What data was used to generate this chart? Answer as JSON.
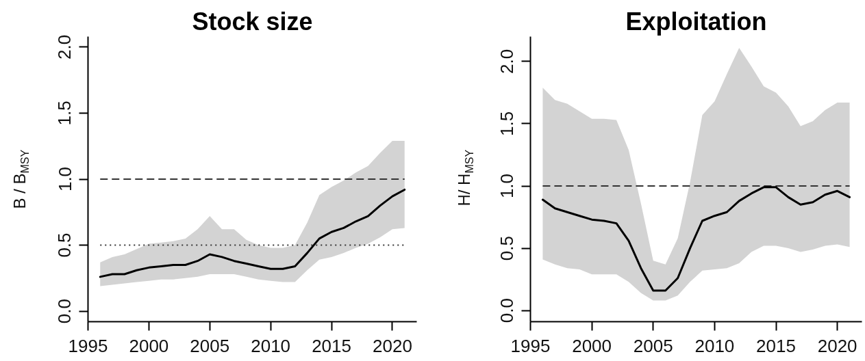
{
  "chart_data": [
    {
      "type": "line",
      "title": "Stock size",
      "ylabel": "B / B$_{MSY}$",
      "x": [
        1996,
        1997,
        1998,
        1999,
        2000,
        2001,
        2002,
        2003,
        2004,
        2005,
        2006,
        2007,
        2008,
        2009,
        2010,
        2011,
        2012,
        2013,
        2014,
        2015,
        2016,
        2017,
        2018,
        2019,
        2020,
        2021
      ],
      "xlim": [
        1995,
        2022
      ],
      "xticks": [
        1995,
        2000,
        2005,
        2010,
        2015,
        2020
      ],
      "ylim": [
        -0.08,
        2.08
      ],
      "yticks": [
        {
          "value": 0,
          "label": "0.0"
        },
        {
          "value": 0.5,
          "label": "0.5"
        },
        {
          "value": 1,
          "label": "1.0"
        },
        {
          "value": 1.5,
          "label": "1.5"
        },
        {
          "value": 2,
          "label": "2.0"
        }
      ],
      "series": [
        {
          "color": "#000000",
          "values": [
            0.26,
            0.28,
            0.28,
            0.31,
            0.33,
            0.34,
            0.35,
            0.35,
            0.38,
            0.43,
            0.41,
            0.38,
            0.36,
            0.34,
            0.32,
            0.32,
            0.34,
            0.44,
            0.55,
            0.6,
            0.63,
            0.68,
            0.72,
            0.8,
            0.87,
            0.92
          ],
          "lower": [
            0.19,
            0.2,
            0.21,
            0.22,
            0.23,
            0.24,
            0.24,
            0.25,
            0.26,
            0.28,
            0.28,
            0.28,
            0.26,
            0.24,
            0.23,
            0.22,
            0.22,
            0.31,
            0.39,
            0.41,
            0.44,
            0.48,
            0.51,
            0.56,
            0.62,
            0.63
          ],
          "upper": [
            0.37,
            0.41,
            0.43,
            0.47,
            0.51,
            0.52,
            0.53,
            0.55,
            0.62,
            0.72,
            0.62,
            0.62,
            0.54,
            0.5,
            0.48,
            0.48,
            0.5,
            0.67,
            0.88,
            0.94,
            0.99,
            1.05,
            1.1,
            1.2,
            1.29,
            1.29
          ]
        }
      ],
      "ref_lines": [
        {
          "axis": "y",
          "value": 1,
          "line_style": "dashed",
          "color": "#333333"
        },
        {
          "axis": "y",
          "value": 0.5,
          "line_style": "dotted",
          "color": "#333333"
        }
      ],
      "grid": false
    },
    {
      "type": "line",
      "title": "Exploitation",
      "ylabel": "H/ H$_{MSY}$",
      "x": [
        1996,
        1997,
        1998,
        1999,
        2000,
        2001,
        2002,
        2003,
        2004,
        2005,
        2006,
        2007,
        2008,
        2009,
        2010,
        2011,
        2012,
        2013,
        2014,
        2015,
        2016,
        2017,
        2018,
        2019,
        2020,
        2021
      ],
      "xlim": [
        1995,
        2022
      ],
      "xticks": [
        1995,
        2000,
        2005,
        2010,
        2015,
        2020
      ],
      "ylim": [
        -0.09,
        2.2
      ],
      "yticks": [
        {
          "value": 0,
          "label": "0.0"
        },
        {
          "value": 0.5,
          "label": "0.5"
        },
        {
          "value": 1,
          "label": "1.0"
        },
        {
          "value": 1.5,
          "label": "1.5"
        },
        {
          "value": 2,
          "label": "2.0"
        }
      ],
      "series": [
        {
          "color": "#000000",
          "values": [
            0.89,
            0.82,
            0.79,
            0.76,
            0.73,
            0.72,
            0.7,
            0.56,
            0.34,
            0.16,
            0.16,
            0.26,
            0.5,
            0.72,
            0.76,
            0.79,
            0.88,
            0.94,
            0.99,
            0.99,
            0.91,
            0.85,
            0.87,
            0.93,
            0.96,
            0.91
          ],
          "lower": [
            0.41,
            0.37,
            0.34,
            0.33,
            0.29,
            0.29,
            0.29,
            0.23,
            0.14,
            0.08,
            0.08,
            0.12,
            0.23,
            0.32,
            0.33,
            0.34,
            0.38,
            0.47,
            0.52,
            0.52,
            0.5,
            0.47,
            0.49,
            0.52,
            0.53,
            0.51
          ],
          "upper": [
            1.79,
            1.69,
            1.66,
            1.6,
            1.54,
            1.54,
            1.53,
            1.29,
            0.86,
            0.4,
            0.37,
            0.58,
            1.03,
            1.57,
            1.68,
            1.9,
            2.11,
            1.96,
            1.8,
            1.75,
            1.64,
            1.48,
            1.52,
            1.61,
            1.67,
            1.67
          ]
        }
      ],
      "ref_lines": [
        {
          "axis": "y",
          "value": 1,
          "line_style": "dashed",
          "color": "#333333"
        }
      ],
      "grid": false
    }
  ]
}
